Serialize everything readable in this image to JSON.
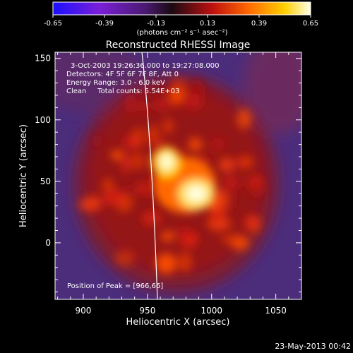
{
  "chart_data": {
    "type": "heatmap",
    "title": "Reconstructed RHESSI Image",
    "xlabel": "Heliocentric X (arcsec)",
    "ylabel": "Heliocentric Y (arcsec)",
    "xlim": [
      878,
      1070
    ],
    "ylim": [
      -46,
      155
    ],
    "x_ticks": [
      900,
      950,
      1000,
      1050
    ],
    "y_ticks": [
      0,
      50,
      100,
      150
    ],
    "colorbar": {
      "range": [
        -0.65,
        0.65
      ],
      "tick_labels": [
        "-0.65",
        "-0.39",
        "-0.13",
        "0.13",
        "0.39",
        "0.65"
      ],
      "units": "(photons cm⁻² s⁻¹ asec⁻²)",
      "colors": [
        "#1a10ff",
        "#7a1fd8",
        "#4a1a70",
        "#1a0a12",
        "#c01010",
        "#ff6a00",
        "#ffd000",
        "#ffffe8"
      ]
    },
    "annotations": {
      "time_range": "3-Oct-2003 19:26:36.000 to 19:27:08.000",
      "detectors": "Detectors: 4F 5F 6F 7F 8F, Att 0",
      "energy": "Energy Range: 3.0 - 6.0 keV",
      "method": "Clean     Total counts: 5.54E+03",
      "peak": "Position of Peak = [966,66]"
    },
    "peak": [
      966,
      66
    ],
    "footer_date": "23-May-2013 00:42",
    "background_colors": [
      "#4b2d7c",
      "#6f1a2c",
      "#b01414",
      "#ff5a00",
      "#ffe060",
      "#ffffc0"
    ]
  }
}
